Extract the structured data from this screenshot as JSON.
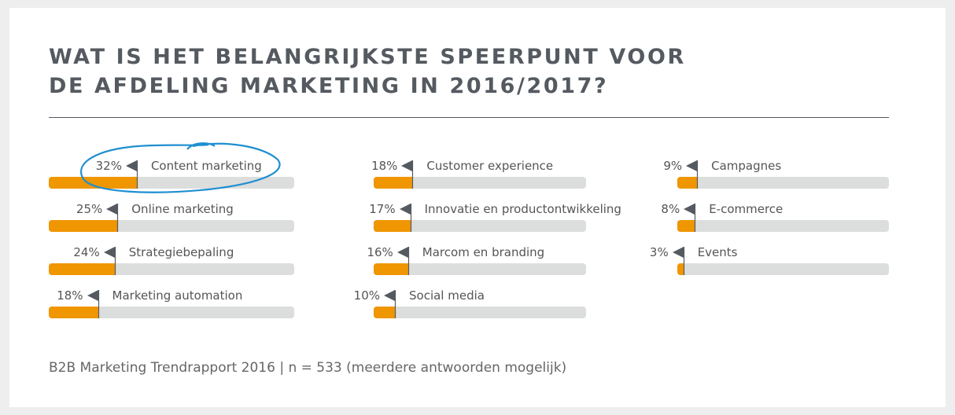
{
  "title_line1": "WAT IS HET BELANGRIJKSTE SPEERPUNT VOOR",
  "title_line2": "DE AFDELING MARKETING IN 2016/2017?",
  "footer": "B2B Marketing Trendrapport 2016 | n = 533 (meerdere antwoorden mogelijk)",
  "colors": {
    "fill": "#ef9600",
    "track": "#dcdddd",
    "text": "#555a61",
    "highlight": "#1f8fd0"
  },
  "chart_data": {
    "type": "bar",
    "title": "WAT IS HET BELANGRIJKSTE SPEERPUNT VOOR DE AFDELING MARKETING IN 2016/2017?",
    "unit": "%",
    "highlighted": "Content marketing",
    "columns": [
      [
        {
          "label": "Content marketing",
          "value": 32
        },
        {
          "label": "Online marketing",
          "value": 25
        },
        {
          "label": "Strategiebepaling",
          "value": 24
        },
        {
          "label": "Marketing automation",
          "value": 18
        }
      ],
      [
        {
          "label": "Customer experience",
          "value": 18
        },
        {
          "label": "Innovatie en productontwikkeling",
          "value": 17
        },
        {
          "label": "Marcom en branding",
          "value": 16
        },
        {
          "label": "Social media",
          "value": 10
        }
      ],
      [
        {
          "label": "Campagnes",
          "value": 9
        },
        {
          "label": "E-commerce",
          "value": 8
        },
        {
          "label": "Events",
          "value": 3
        }
      ]
    ]
  }
}
